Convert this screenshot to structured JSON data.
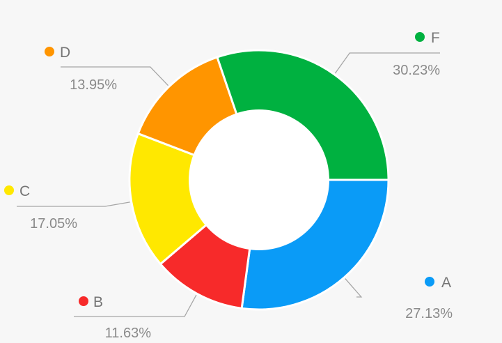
{
  "chart_data": {
    "type": "pie",
    "variant": "donut",
    "categories": [
      "A",
      "B",
      "C",
      "D",
      "F"
    ],
    "values": [
      27.13,
      11.63,
      17.05,
      13.95,
      30.23
    ],
    "labels": [
      "27.13%",
      "11.63%",
      "17.05%",
      "13.95%",
      "30.23%"
    ],
    "colors": [
      "#0a9bf7",
      "#f72a2a",
      "#ffe800",
      "#ff9500",
      "#00b140"
    ],
    "start": "3 o'clock, clockwise",
    "legend": "callout labels beside each slice"
  }
}
